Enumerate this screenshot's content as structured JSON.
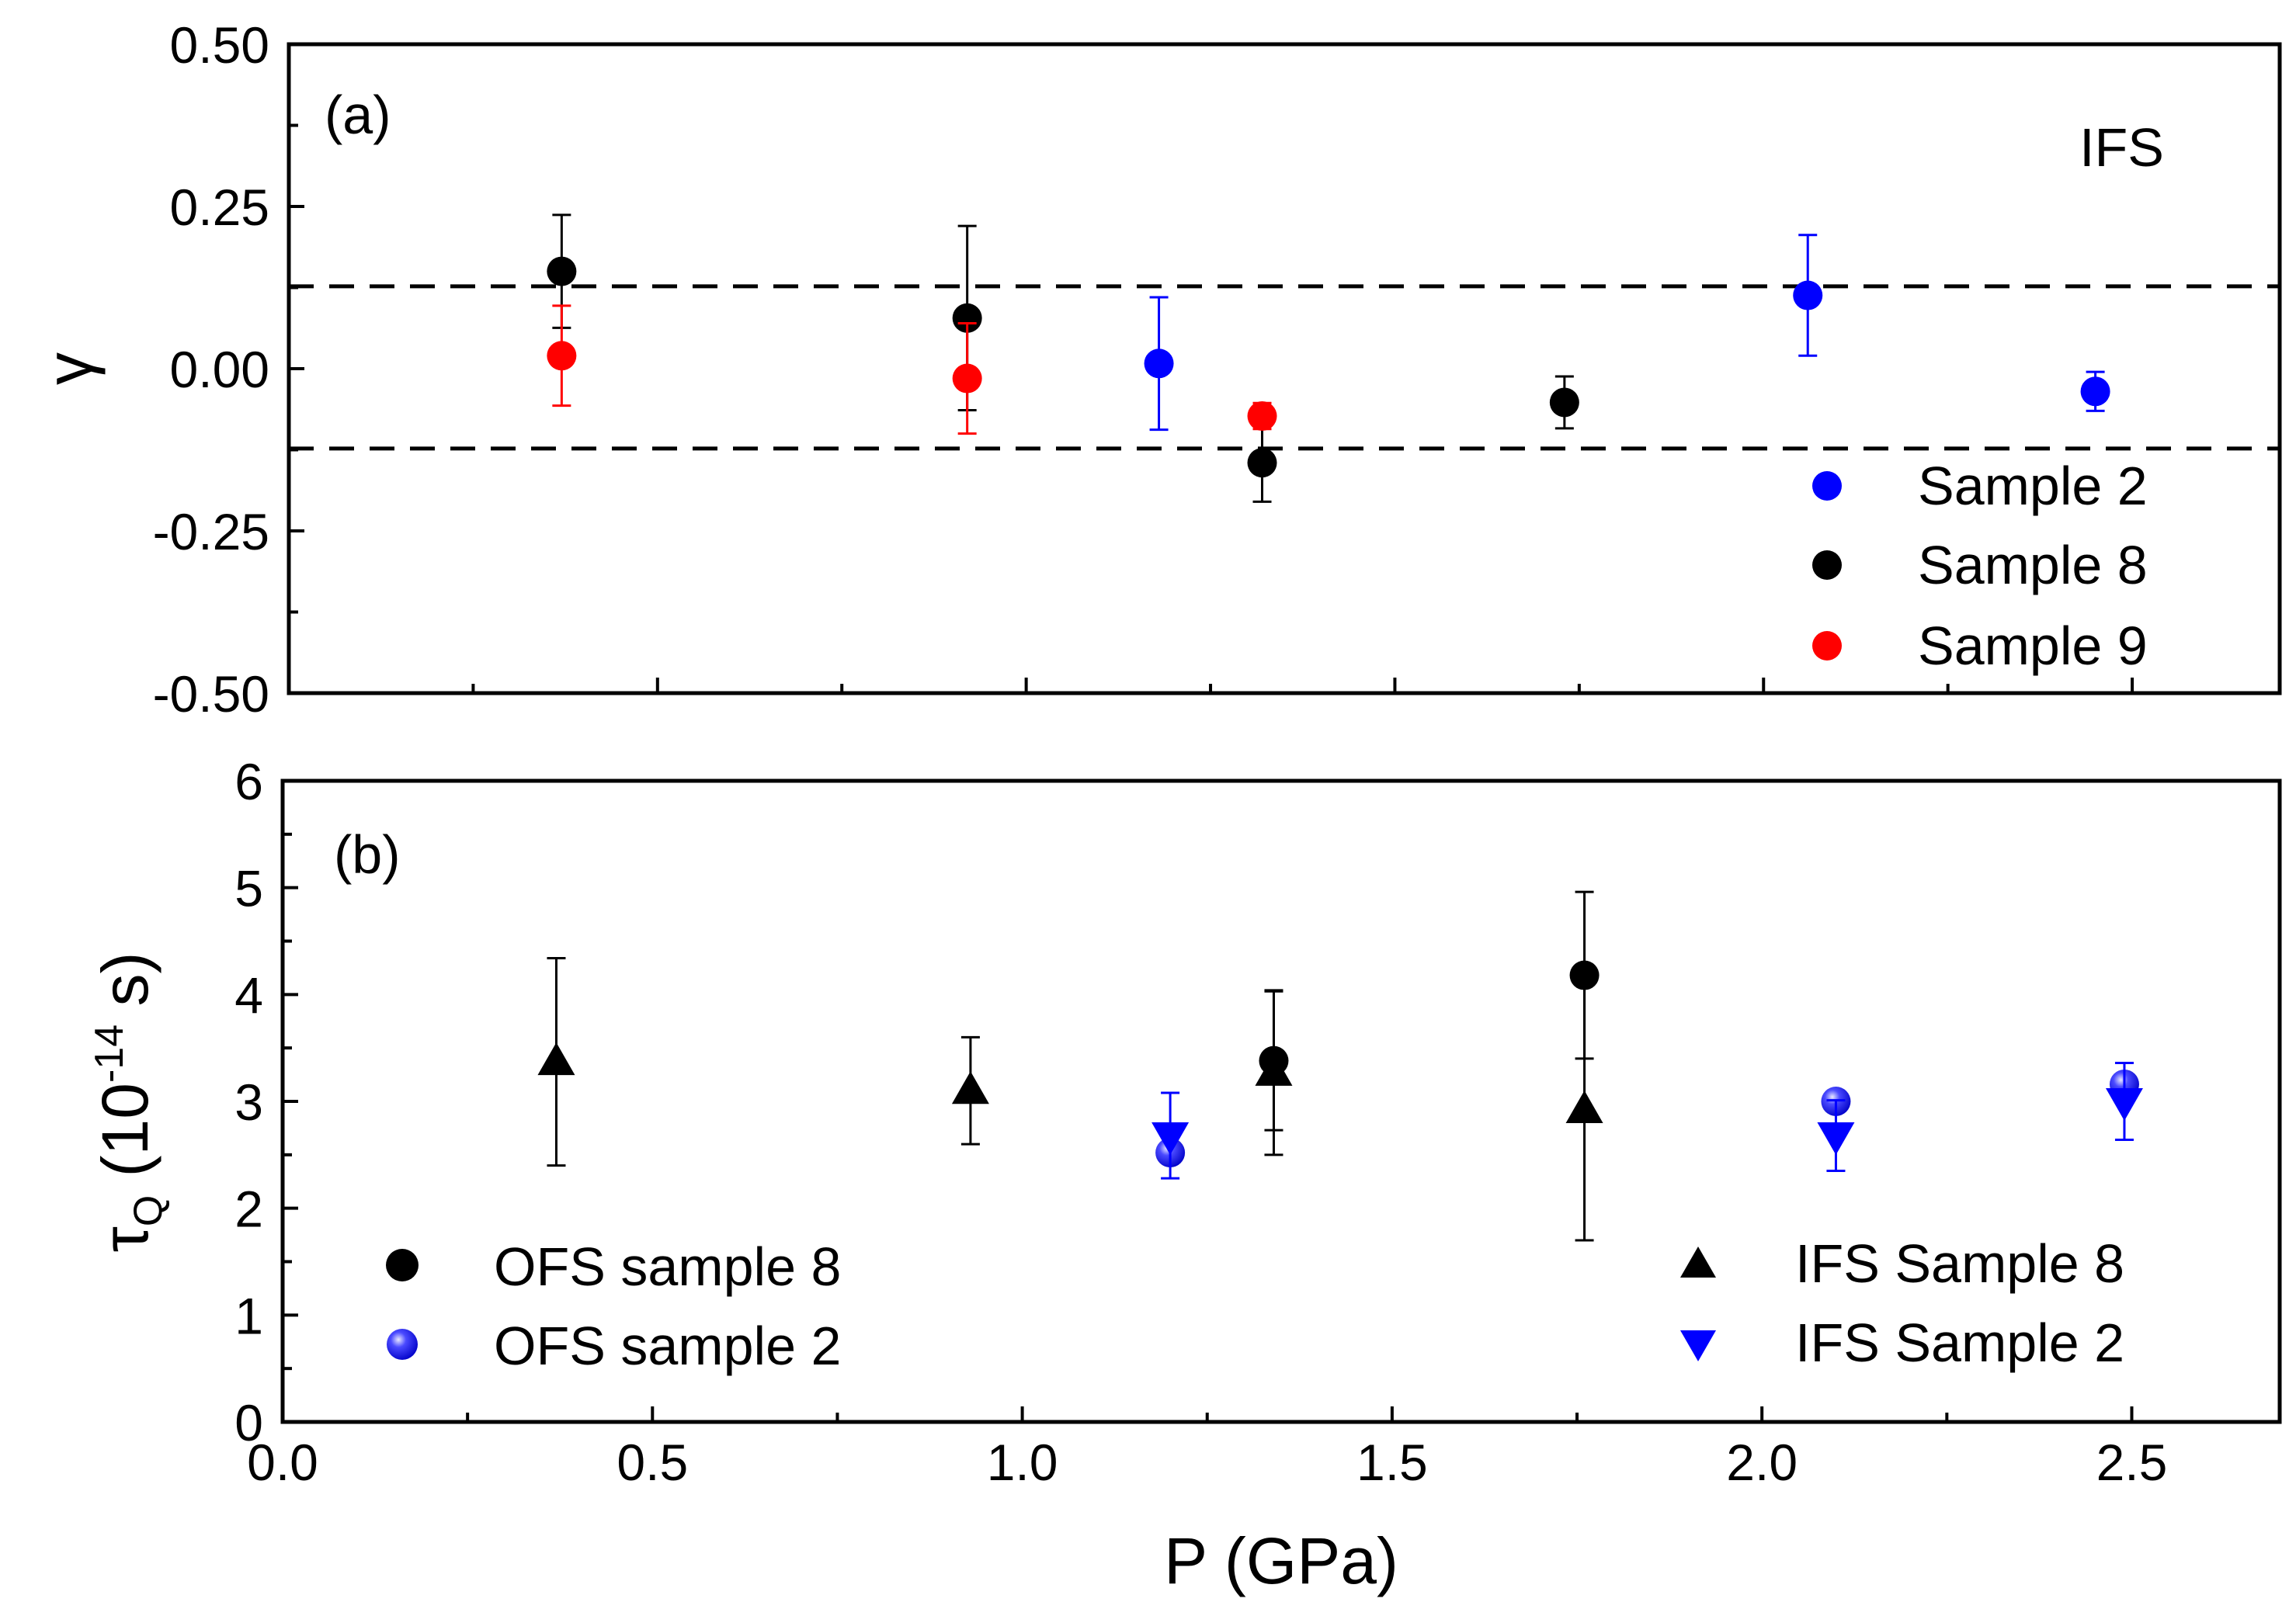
{
  "chart_data": [
    {
      "panel": "a",
      "type": "scatter",
      "panel_label": "(a)",
      "annotation": "IFS",
      "ylabel": "γ",
      "xlabel": "",
      "xlim": [
        0.0,
        2.7
      ],
      "ylim": [
        -0.5,
        0.5
      ],
      "xticks": [
        0.0,
        0.5,
        1.0,
        1.5,
        2.0,
        2.5
      ],
      "yticks": [
        -0.5,
        -0.25,
        0.0,
        0.25,
        0.5
      ],
      "ytick_labels": [
        "-0.50",
        "-0.25",
        "0.00",
        "0.25",
        "0.50"
      ],
      "reference_lines": [
        0.127,
        -0.123
      ],
      "legend_position": "bottom-right",
      "series": [
        {
          "name": "Sample 2",
          "color": "#0000ff",
          "marker": "circle",
          "points": [
            {
              "x": 1.18,
              "y": 0.008,
              "err": 0.102
            },
            {
              "x": 2.06,
              "y": 0.113,
              "err": 0.093
            },
            {
              "x": 2.45,
              "y": -0.035,
              "err": 0.03
            }
          ]
        },
        {
          "name": "Sample 8",
          "color": "#000000",
          "marker": "circle",
          "points": [
            {
              "x": 0.37,
              "y": 0.15,
              "err": 0.087
            },
            {
              "x": 0.92,
              "y": 0.078,
              "err": 0.142
            },
            {
              "x": 1.32,
              "y": -0.145,
              "err": 0.06
            },
            {
              "x": 1.73,
              "y": -0.052,
              "err": 0.04
            }
          ]
        },
        {
          "name": "Sample 9",
          "color": "#ff0000",
          "marker": "circle",
          "points": [
            {
              "x": 0.37,
              "y": 0.02,
              "err": 0.077
            },
            {
              "x": 0.92,
              "y": -0.015,
              "err": 0.085
            },
            {
              "x": 1.32,
              "y": -0.073,
              "err": 0.02
            }
          ]
        }
      ]
    },
    {
      "panel": "b",
      "type": "scatter",
      "panel_label": "(b)",
      "ylabel_main": "τ",
      "ylabel_sub": "Q",
      "ylabel_rest": " (10",
      "ylabel_exp": "-14",
      "ylabel_end": " s)",
      "xlabel": "P (GPa)",
      "xlim": [
        0.0,
        2.7
      ],
      "ylim": [
        0,
        6
      ],
      "xticks": [
        0.0,
        0.5,
        1.0,
        1.5,
        2.0,
        2.5
      ],
      "xtick_labels": [
        "0.0",
        "0.5",
        "1.0",
        "1.5",
        "2.0",
        "2.5"
      ],
      "yticks": [
        0,
        1,
        2,
        3,
        4,
        5,
        6
      ],
      "ytick_labels": [
        "0",
        "1",
        "2",
        "3",
        "4",
        "5",
        "6"
      ],
      "legend_left_position": "bottom-left",
      "legend_right_position": "bottom-right",
      "series": [
        {
          "name": "OFS sample 8",
          "color": "#000000",
          "marker": "circle",
          "points": [
            {
              "x": 1.34,
              "y": 3.38,
              "err": 0.65
            },
            {
              "x": 1.76,
              "y": 4.18,
              "err": 0.78
            }
          ]
        },
        {
          "name": "OFS sample 2",
          "color": "#0000ff",
          "marker": "shaded-circle",
          "points": [
            {
              "x": 1.2,
              "y": 2.52,
              "err": 0.0
            },
            {
              "x": 2.1,
              "y": 3.0,
              "err": 0.0
            },
            {
              "x": 2.49,
              "y": 3.16,
              "err": 0.0
            }
          ]
        },
        {
          "name": "IFS Sample 8",
          "color": "#000000",
          "marker": "triangle-up",
          "points": [
            {
              "x": 0.37,
              "y": 3.37,
              "err": 0.97
            },
            {
              "x": 0.93,
              "y": 3.1,
              "err": 0.5
            },
            {
              "x": 1.34,
              "y": 3.27,
              "err": 0.77
            },
            {
              "x": 1.76,
              "y": 2.92,
              "err": 1.22
            }
          ]
        },
        {
          "name": "IFS Sample 2",
          "color": "#0000ff",
          "marker": "triangle-down",
          "points": [
            {
              "x": 1.2,
              "y": 2.68,
              "err": 0.4
            },
            {
              "x": 2.1,
              "y": 2.68,
              "err": 0.33
            },
            {
              "x": 2.49,
              "y": 3.0,
              "err": 0.36
            }
          ]
        }
      ]
    }
  ]
}
